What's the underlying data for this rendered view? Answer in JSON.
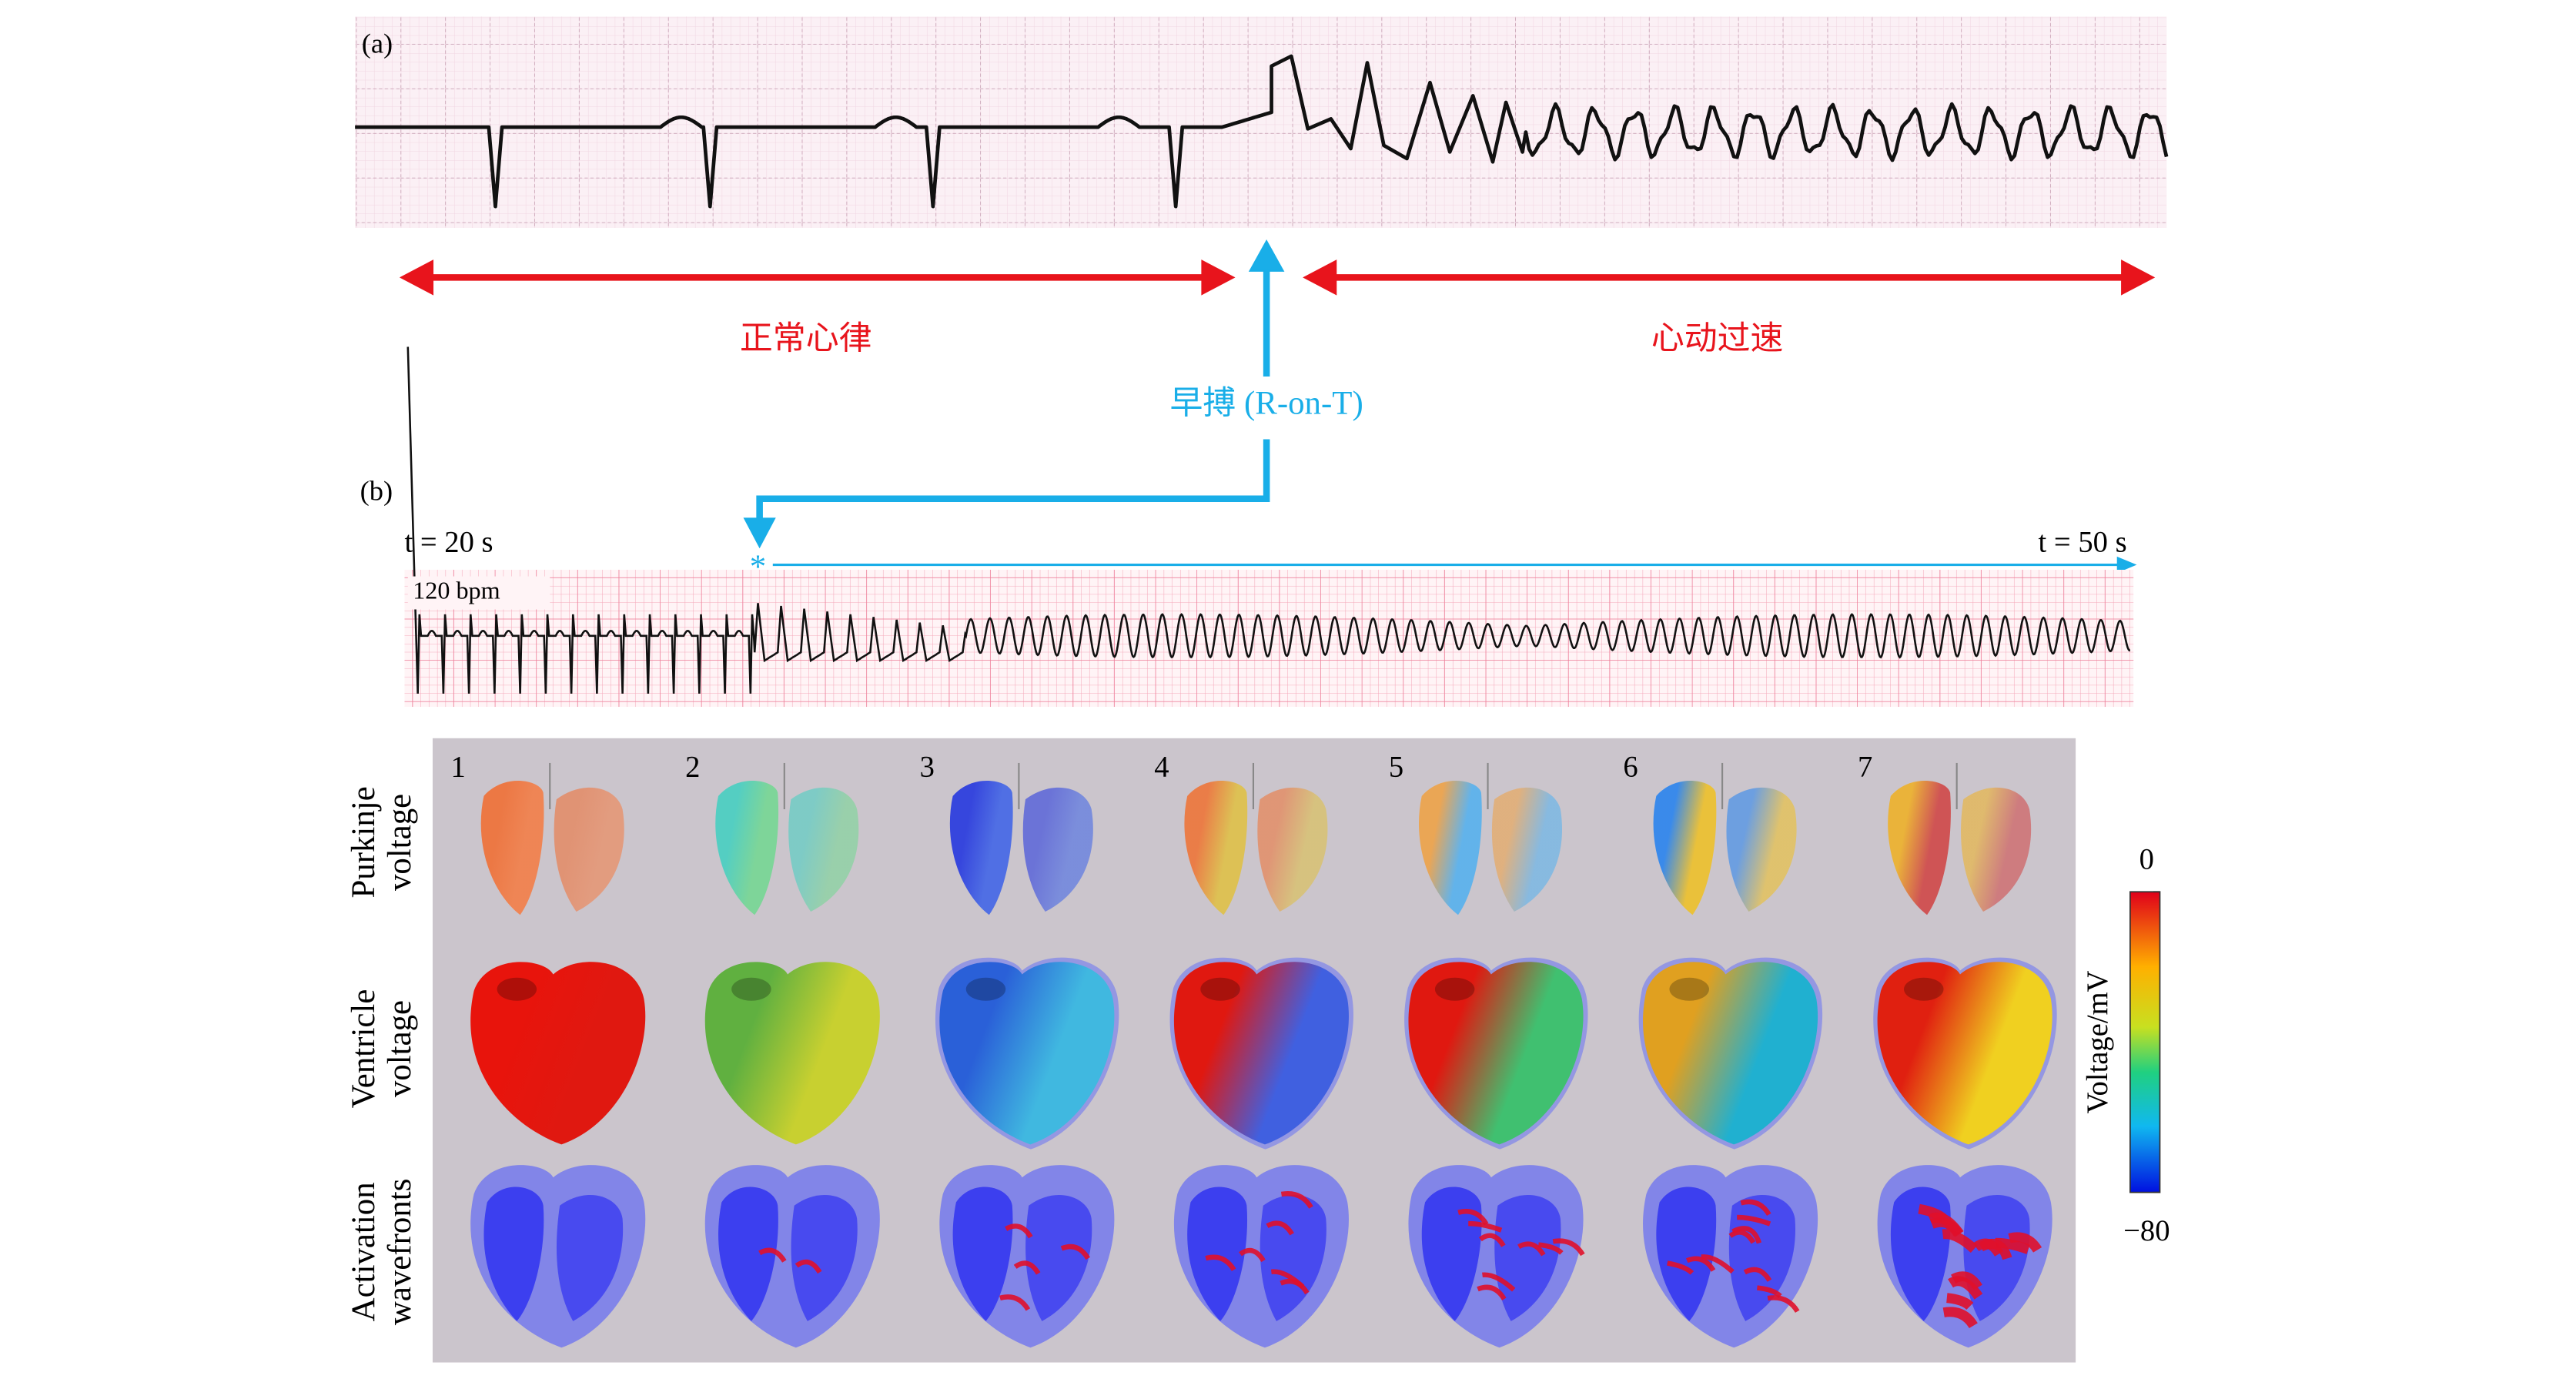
{
  "panel_a": {
    "label": "(a)",
    "normal": "正常心律",
    "tachycardia": "心动过速"
  },
  "premature": "早搏 (R-on-T)",
  "panel_b": {
    "label": "(b)",
    "start": "t = 20 s",
    "end": "t = 50 s",
    "rate": "120 bpm"
  },
  "panel_c": {
    "rows": [
      [
        "Purkinje",
        "voltage"
      ],
      [
        "Ventricle",
        "voltage"
      ],
      [
        "Activation",
        "wavefronts"
      ]
    ],
    "columns": [
      "1",
      "2",
      "3",
      "4",
      "5",
      "6",
      "7"
    ],
    "colorbar": {
      "label": "Voltage/mV",
      "lim": [
        -80,
        0
      ],
      "ticks": [
        {
          "value": 0,
          "label": "0"
        },
        {
          "value": -80,
          "label": "−80"
        }
      ]
    }
  }
}
